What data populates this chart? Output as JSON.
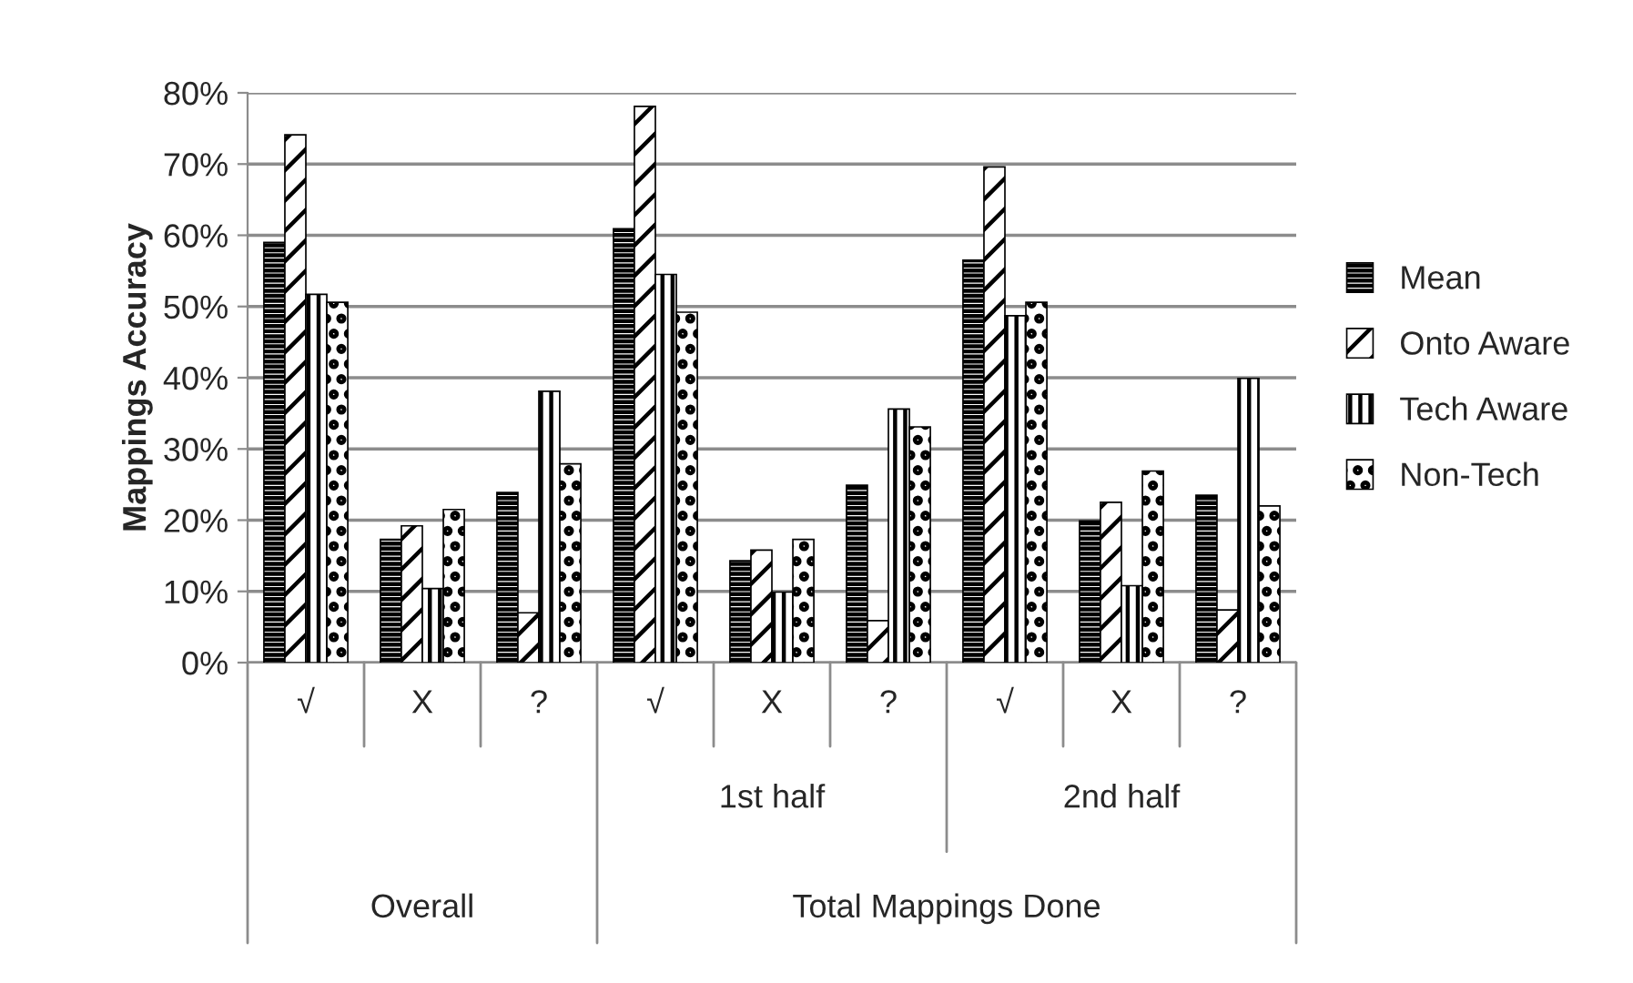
{
  "chart_data": {
    "type": "bar",
    "ylabel": "Mappings Accuracy",
    "categories": [
      "√",
      "X",
      "?",
      "√",
      "X",
      "?",
      "√",
      "X",
      "?"
    ],
    "annotations": [
      "Overall",
      "1st half",
      "2nd half",
      "Total Mappings Done"
    ],
    "series": [
      {
        "name": "Mean",
        "color": "#000000",
        "values": [
          59,
          17.3,
          23.9,
          60.9,
          14.3,
          24.9,
          56.5,
          19.9,
          23.5
        ]
      },
      {
        "name": "Onto Aware",
        "color": "#000000",
        "values": [
          74.1,
          19.2,
          7,
          78.1,
          15.8,
          5.9,
          69.6,
          22.5,
          7.4
        ]
      },
      {
        "name": "Tech Aware",
        "color": "#000000",
        "values": [
          51.7,
          10.4,
          38.1,
          54.5,
          9.9,
          35.6,
          48.7,
          10.8,
          39.9
        ]
      },
      {
        "name": "Non-Tech",
        "color": "#000000",
        "values": [
          50.6,
          21.5,
          27.9,
          49.2,
          17.3,
          33.1,
          50.6,
          26.9,
          22
        ]
      }
    ],
    "ylim": [
      0,
      80
    ],
    "yticks": [
      {
        "value": 0,
        "label": "0%"
      },
      {
        "value": 10,
        "label": "10%"
      },
      {
        "value": 20,
        "label": "20%"
      },
      {
        "value": 30,
        "label": "30%"
      },
      {
        "value": 40,
        "label": "40%"
      },
      {
        "value": 50,
        "label": "50%"
      },
      {
        "value": 60,
        "label": "60%"
      },
      {
        "value": 70,
        "label": "70%"
      },
      {
        "value": 80,
        "label": "80%"
      }
    ],
    "grid": "y",
    "legend": "right"
  }
}
